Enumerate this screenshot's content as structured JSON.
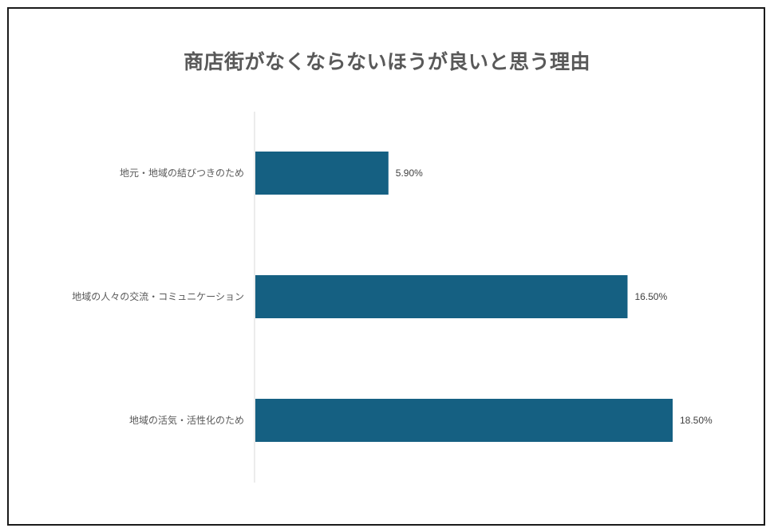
{
  "chart_data": {
    "type": "bar",
    "orientation": "horizontal",
    "title": "商店街がなくならないほうが良いと思う理由",
    "categories": [
      "地元・地域の結びつきのため",
      "地域の人々の交流・コミュニケーション",
      "地域の活気・活性化のため"
    ],
    "values": [
      5.9,
      16.5,
      18.5
    ],
    "value_labels": [
      "5.90%",
      "16.50%",
      "18.50%"
    ],
    "bar_color": "#156082",
    "xlim": [
      0,
      20
    ],
    "grid": false,
    "legend": "none"
  }
}
